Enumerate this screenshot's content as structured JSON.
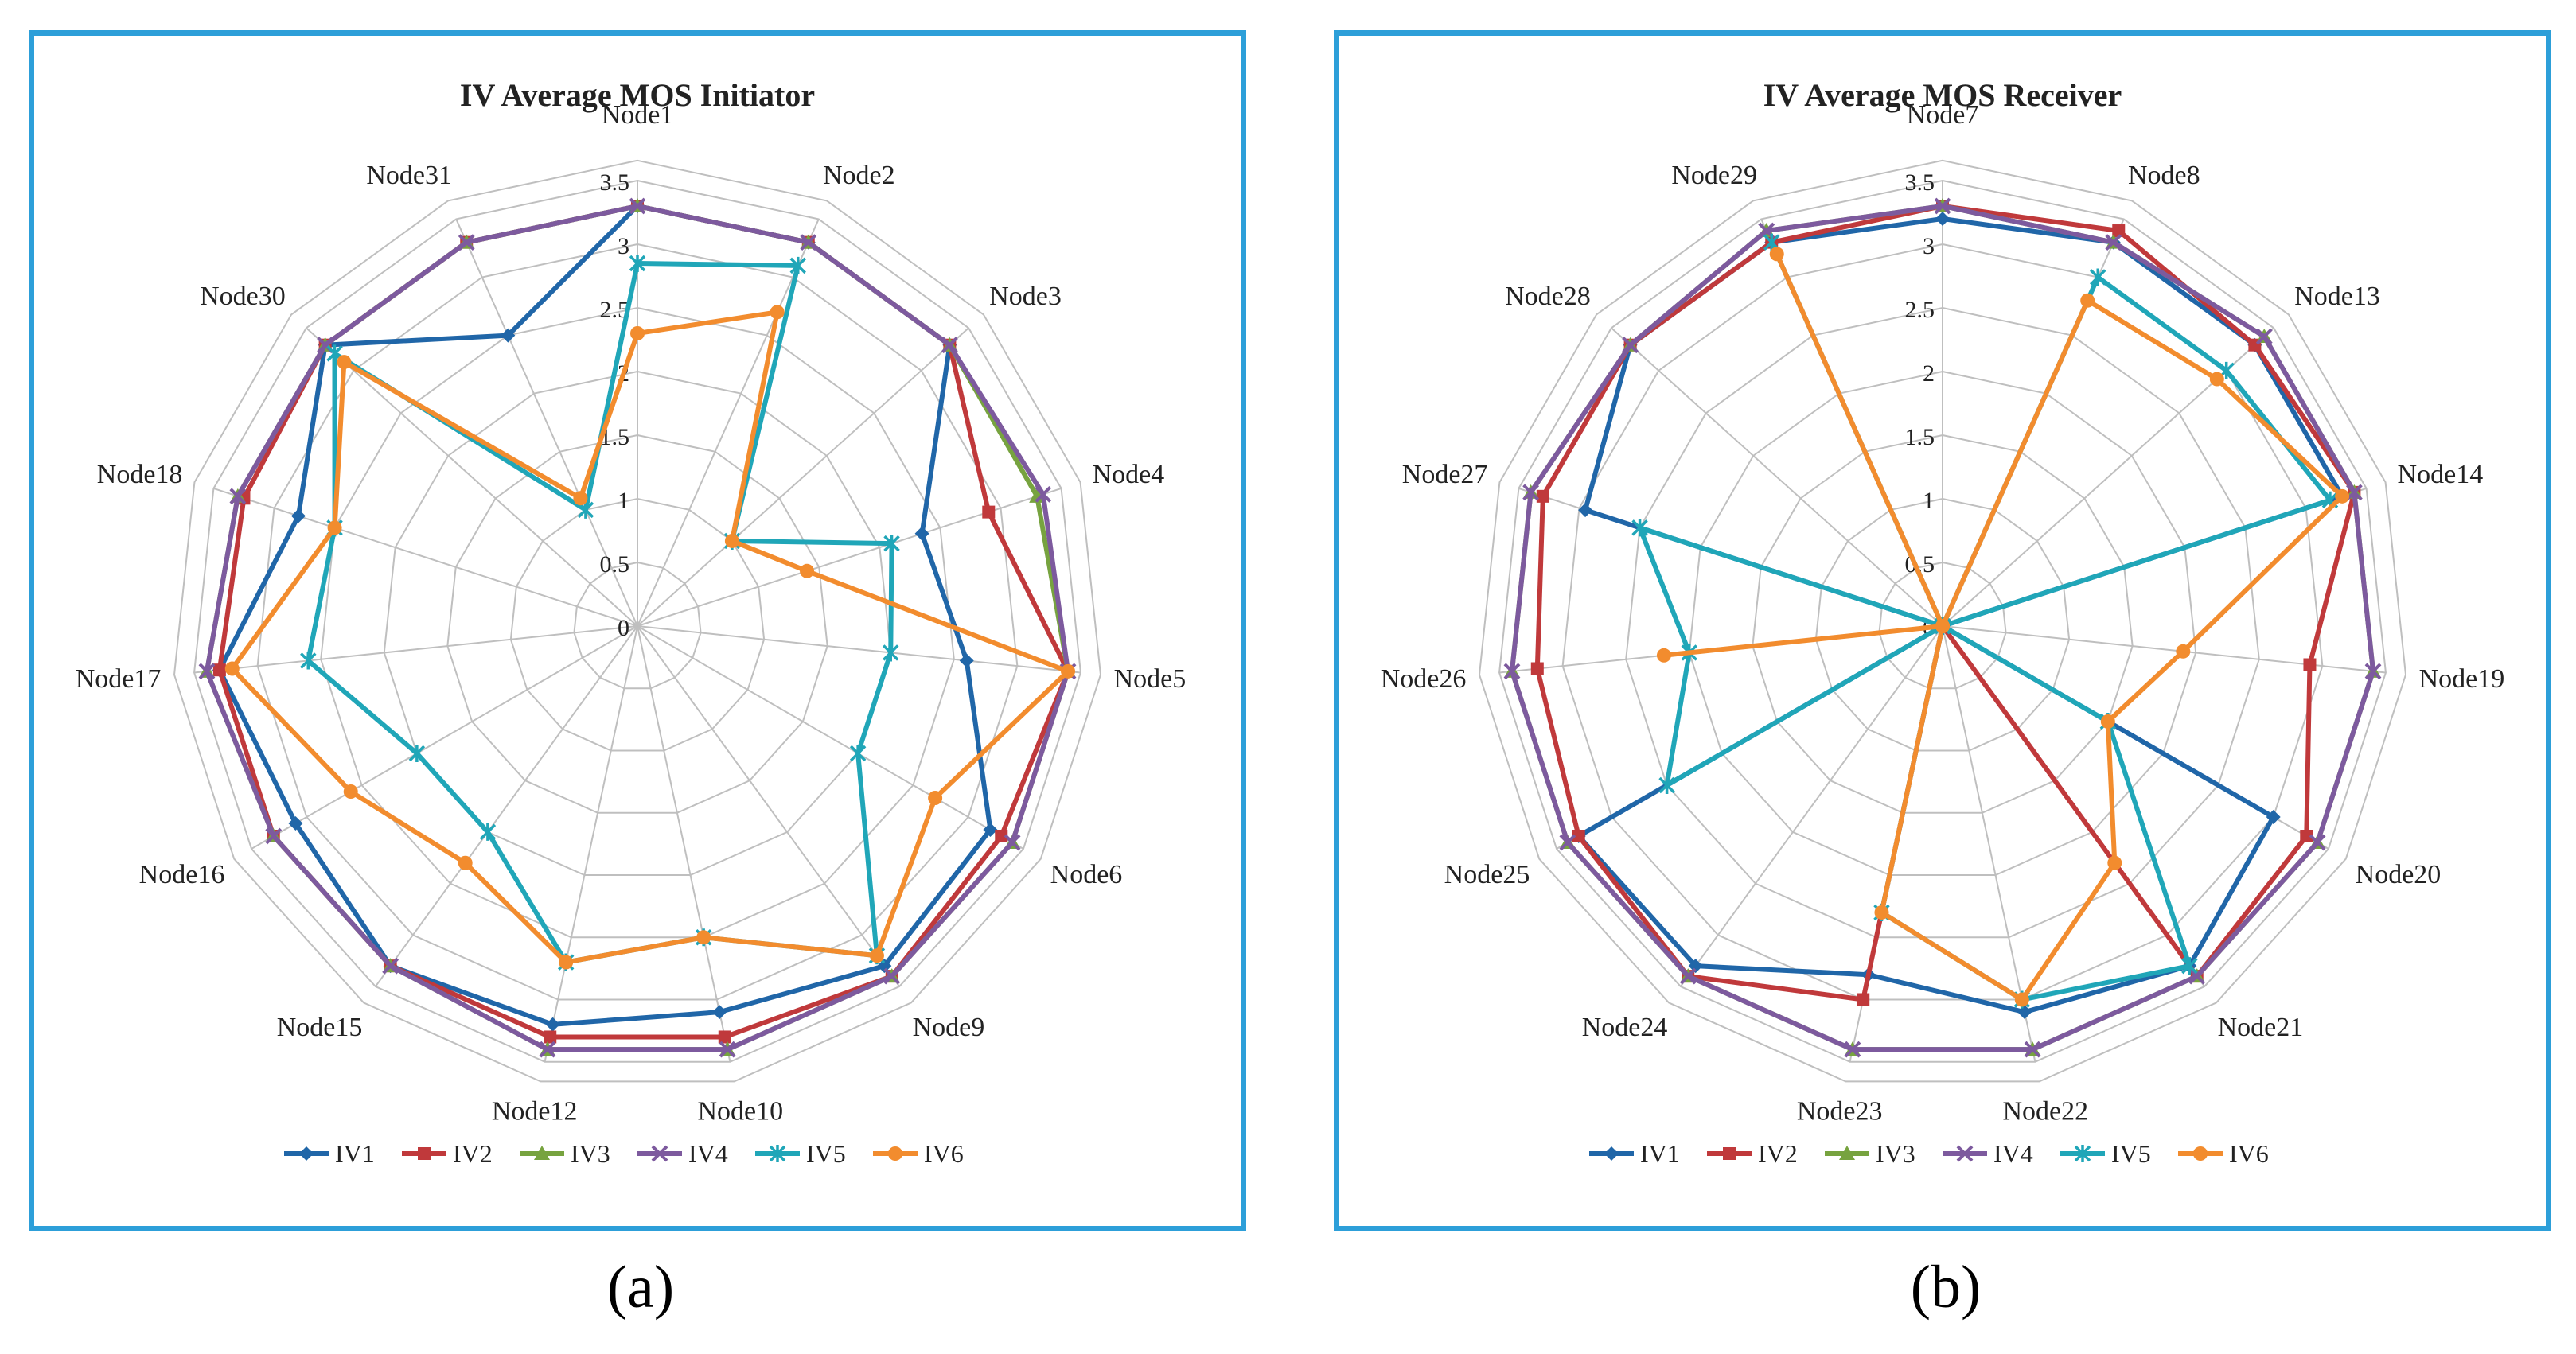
{
  "colors": {
    "IV1": "#2066a8",
    "IV2": "#c0393b",
    "IV3": "#77a33f",
    "IV4": "#7d5a9e",
    "IV5": "#20a6b8",
    "IV6": "#f28c2e",
    "frame": "#2d9fd9",
    "grid": "#bfbfbf"
  },
  "subplot_labels": {
    "a": "(a)",
    "b": "(b)"
  },
  "chart_data": [
    {
      "type": "radar",
      "title": "IV Average MOS Initiator",
      "axis_ticks": [
        "0",
        "0.5",
        "1",
        "1.5",
        "2",
        "2.5",
        "3",
        "3.5"
      ],
      "range": [
        0,
        3.5
      ],
      "grid": true,
      "legend_position": "bottom",
      "categories": [
        "Node1",
        "Node2",
        "Node3",
        "Node4",
        "Node5",
        "Node6",
        "Node9",
        "Node10",
        "Node12",
        "Node15",
        "Node16",
        "Node17",
        "Node18",
        "Node30",
        "Node31"
      ],
      "series": [
        {
          "name": "IV1",
          "values": [
            3.3,
            3.3,
            3.3,
            2.35,
            2.6,
            3.2,
            3.3,
            3.1,
            3.2,
            3.3,
            3.1,
            3.3,
            2.8,
            3.3,
            2.5
          ]
        },
        {
          "name": "IV2",
          "values": [
            3.3,
            3.3,
            3.3,
            2.9,
            3.4,
            3.3,
            3.4,
            3.3,
            3.3,
            3.3,
            3.3,
            3.3,
            3.25,
            3.3,
            3.3
          ]
        },
        {
          "name": "IV3",
          "values": [
            3.3,
            3.3,
            3.3,
            3.3,
            3.4,
            3.4,
            3.4,
            3.4,
            3.4,
            3.3,
            3.3,
            3.4,
            3.3,
            3.3,
            3.3
          ]
        },
        {
          "name": "IV4",
          "values": [
            3.3,
            3.3,
            3.3,
            3.35,
            3.4,
            3.4,
            3.4,
            3.4,
            3.4,
            3.3,
            3.3,
            3.4,
            3.3,
            3.3,
            3.3
          ]
        },
        {
          "name": "IV5",
          "values": [
            2.85,
            3.1,
            1.0,
            2.1,
            2.0,
            2.0,
            3.2,
            2.5,
            2.7,
            2.0,
            2.0,
            2.6,
            2.5,
            3.2,
            1.0
          ]
        },
        {
          "name": "IV6",
          "values": [
            2.3,
            2.7,
            1.0,
            1.4,
            3.4,
            2.7,
            3.2,
            2.5,
            2.7,
            2.3,
            2.6,
            3.2,
            2.5,
            3.1,
            1.1
          ]
        }
      ]
    },
    {
      "type": "radar",
      "title": "IV Average MOS Receiver",
      "axis_ticks": [
        "0",
        "0.5",
        "1",
        "1.5",
        "2",
        "2.5",
        "3",
        "3.5"
      ],
      "range": [
        0,
        3.5
      ],
      "grid": true,
      "legend_position": "bottom",
      "categories": [
        "Node7",
        "Node8",
        "Node13",
        "Node14",
        "Node19",
        "Node20",
        "Node21",
        "Node22",
        "Node23",
        "Node24",
        "Node25",
        "Node26",
        "Node27",
        "Node28",
        "Node29"
      ],
      "series": [
        {
          "name": "IV1",
          "values": [
            3.2,
            3.3,
            3.3,
            3.3,
            0.0,
            3.0,
            3.3,
            3.1,
            2.8,
            3.3,
            3.3,
            0.0,
            2.95,
            3.3,
            3.3
          ]
        },
        {
          "name": "IV2",
          "values": [
            3.3,
            3.4,
            3.3,
            3.4,
            2.9,
            3.3,
            3.4,
            0.0,
            3.0,
            3.4,
            3.3,
            3.2,
            3.3,
            3.3,
            3.3
          ]
        },
        {
          "name": "IV3",
          "values": [
            3.3,
            3.3,
            3.4,
            3.4,
            3.4,
            3.4,
            3.4,
            3.4,
            3.4,
            3.4,
            3.4,
            3.4,
            3.4,
            3.3,
            3.4
          ]
        },
        {
          "name": "IV4",
          "values": [
            3.3,
            3.3,
            3.4,
            3.4,
            3.4,
            3.4,
            3.4,
            3.4,
            3.4,
            3.4,
            3.4,
            3.4,
            3.4,
            3.3,
            3.4
          ]
        },
        {
          "name": "IV5",
          "values": [
            0.0,
            3.0,
            3.0,
            3.2,
            0.0,
            1.5,
            3.3,
            3.0,
            2.3,
            0.0,
            2.5,
            2.0,
            2.5,
            0.0,
            3.3
          ]
        },
        {
          "name": "IV6",
          "values": [
            0.0,
            2.8,
            2.9,
            3.3,
            1.9,
            1.5,
            2.3,
            3.0,
            2.3,
            0.0,
            0.0,
            2.2,
            0.0,
            0.0,
            3.2
          ]
        }
      ]
    }
  ]
}
